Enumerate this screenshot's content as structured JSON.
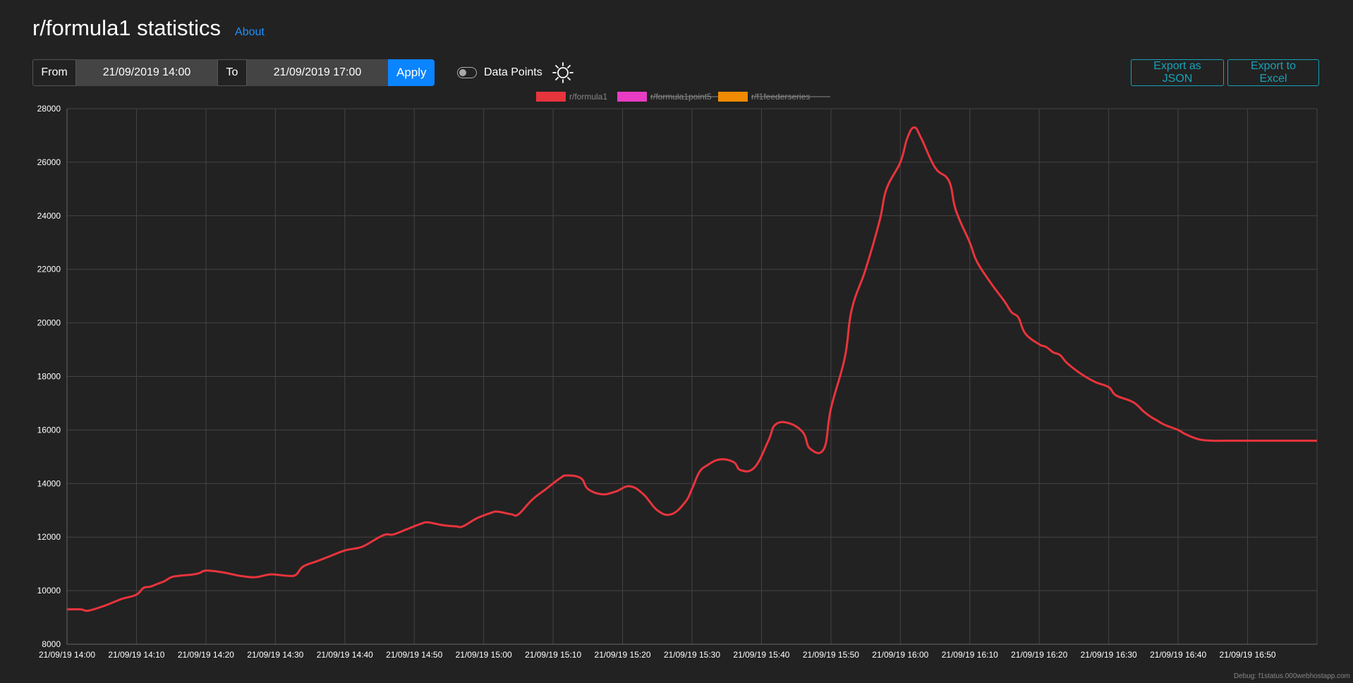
{
  "header": {
    "title": "r/formula1 statistics",
    "about_label": "About"
  },
  "controls": {
    "from_label": "From",
    "from_value": "21/09/2019 14:00",
    "to_label": "To",
    "to_value": "21/09/2019 17:00",
    "apply_label": "Apply",
    "data_points_label": "Data Points",
    "data_points_enabled": false,
    "theme_icon": "sun-icon",
    "export_json_label": "Export as JSON",
    "export_excel_label": "Export to Excel"
  },
  "colors": {
    "background": "#222222",
    "accent_blue": "#0a84ff",
    "export_teal": "#17a2b8",
    "grid": "#444444"
  },
  "chart_data": {
    "type": "line",
    "title": "",
    "xlabel": "",
    "ylabel": "",
    "ylim": [
      8000,
      28000
    ],
    "yticks": [
      "8000",
      "10000",
      "12000",
      "14000",
      "16000",
      "18000",
      "20000",
      "22000",
      "24000",
      "26000",
      "28000"
    ],
    "xticks": [
      "21/09/19 14:00",
      "21/09/19 14:10",
      "21/09/19 14:20",
      "21/09/19 14:30",
      "21/09/19 14:40",
      "21/09/19 14:50",
      "21/09/19 15:00",
      "21/09/19 15:10",
      "21/09/19 15:20",
      "21/09/19 15:30",
      "21/09/19 15:40",
      "21/09/19 15:50",
      "21/09/19 16:00",
      "21/09/19 16:10",
      "21/09/19 16:20",
      "21/09/19 16:30",
      "21/09/19 16:40",
      "21/09/19 16:50"
    ],
    "x_minutes_range": [
      0,
      180
    ],
    "legend": [
      {
        "name": "r/formula1",
        "color": "#e8343c",
        "hidden": false
      },
      {
        "name": "r/formula1point5",
        "color": "#e83cc4",
        "hidden": true
      },
      {
        "name": "r/f1feederseries",
        "color": "#f08a00",
        "hidden": true
      }
    ],
    "legend_position": "top",
    "grid": true,
    "series": [
      {
        "name": "r/formula1",
        "color": "#e8343c",
        "x_minutes": [
          0,
          2,
          3,
          5,
          7,
          8,
          10,
          11,
          12,
          13,
          14,
          15,
          16,
          18,
          19,
          20,
          22,
          24,
          25,
          27,
          29,
          30,
          32,
          33,
          34,
          36,
          38,
          40,
          42,
          43,
          45,
          46,
          47,
          49,
          51,
          52,
          54,
          56,
          57,
          59,
          61,
          62,
          64,
          65,
          67,
          69,
          71,
          72,
          74,
          75,
          77,
          79,
          81,
          83,
          85,
          87,
          89,
          90,
          91,
          92,
          94,
          96,
          97,
          99,
          101,
          102,
          104,
          106,
          107,
          109,
          110,
          112,
          113,
          115,
          117,
          118,
          120,
          121,
          122,
          123,
          125,
          127,
          128,
          130,
          131,
          133,
          135,
          136,
          137,
          138,
          140,
          141,
          142,
          143,
          144,
          146,
          148,
          150,
          151,
          153,
          154,
          155,
          156,
          157,
          158,
          160,
          161,
          163,
          165,
          167,
          168,
          170,
          171,
          173,
          175,
          177,
          179,
          180
        ],
        "values": [
          9300,
          9300,
          9250,
          9400,
          9600,
          9700,
          9850,
          10100,
          10150,
          10250,
          10350,
          10500,
          10550,
          10600,
          10650,
          10750,
          10700,
          10600,
          10550,
          10500,
          10600,
          10600,
          10550,
          10600,
          10900,
          11100,
          11300,
          11500,
          11600,
          11700,
          12000,
          12100,
          12100,
          12300,
          12500,
          12550,
          12450,
          12400,
          12400,
          12700,
          12900,
          12950,
          12850,
          12850,
          13400,
          13800,
          14200,
          14300,
          14200,
          13800,
          13600,
          13700,
          13900,
          13600,
          13000,
          12850,
          13300,
          13800,
          14400,
          14650,
          14900,
          14800,
          14500,
          14600,
          15600,
          16200,
          16250,
          15900,
          15300,
          15300,
          16800,
          18700,
          20500,
          22000,
          23800,
          25000,
          26000,
          26900,
          27300,
          26900,
          25800,
          25300,
          24200,
          23000,
          22300,
          21500,
          20800,
          20400,
          20200,
          19600,
          19200,
          19100,
          18900,
          18800,
          18500,
          18100,
          17800,
          17600,
          17300,
          17100,
          16950,
          16700,
          16500,
          16350,
          16200,
          16000,
          15850,
          15650,
          15600,
          15600,
          15600,
          15600,
          15600,
          15600,
          15600,
          15600,
          15600,
          15600
        ]
      }
    ]
  },
  "debug_text": "Debug: f1status.000webhostapp.com"
}
